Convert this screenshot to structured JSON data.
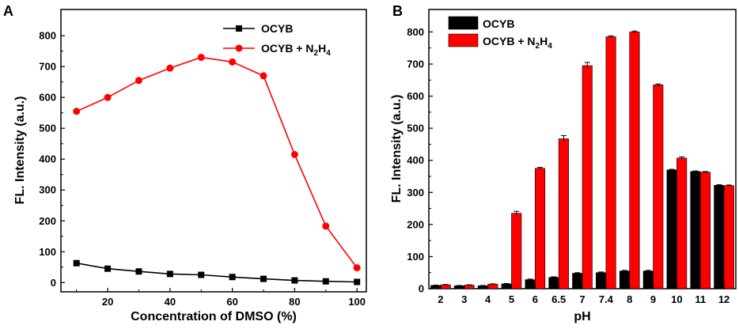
{
  "chart_data": [
    {
      "panel_label": "A",
      "type": "line",
      "xlabel": "Concentration of DMSO (%)",
      "ylabel": "FL. Intensity (a.u.)",
      "xlim": [
        5,
        103
      ],
      "ylim": [
        -30,
        885
      ],
      "x_ticks": [
        "20",
        "40",
        "60",
        "80",
        "100"
      ],
      "y_ticks": [
        "0",
        "100",
        "200",
        "300",
        "400",
        "500",
        "600",
        "700",
        "800"
      ],
      "x": [
        10,
        20,
        30,
        40,
        50,
        60,
        70,
        80,
        90,
        100
      ],
      "series": [
        {
          "name": "OCYB",
          "legend_main": "OCYB",
          "legend_sub": "",
          "legend_tail": "",
          "color": "#000000",
          "marker": "square",
          "values": [
            63,
            45,
            36,
            28,
            25,
            18,
            12,
            7,
            4,
            2
          ]
        },
        {
          "name": "OCYB + N2H4",
          "legend_main": "OCYB + N",
          "legend_sub": "2",
          "legend_tail": "H",
          "legend_sub2": "4",
          "color": "#ff0000",
          "marker": "circle",
          "values": [
            555,
            600,
            655,
            695,
            730,
            715,
            670,
            415,
            183,
            48
          ]
        }
      ]
    },
    {
      "panel_label": "B",
      "type": "bar",
      "xlabel": "pH",
      "ylabel": "FL. Intensity (a.u.)",
      "ylim": [
        0,
        870
      ],
      "categories": [
        "2",
        "3",
        "4",
        "5",
        "6",
        "6.5",
        "7",
        "7.4",
        "8",
        "9",
        "10",
        "11",
        "12"
      ],
      "y_ticks": [
        "0",
        "100",
        "200",
        "300",
        "400",
        "500",
        "600",
        "700",
        "800"
      ],
      "series": [
        {
          "name": "OCYB",
          "legend_main": "OCYB",
          "legend_sub": "",
          "legend_tail": "",
          "color": "#000000",
          "values": [
            10,
            9,
            9,
            15,
            28,
            35,
            48,
            50,
            55,
            55,
            370,
            365,
            322
          ],
          "errors": [
            1,
            1,
            1,
            1,
            2,
            2,
            2,
            2,
            2,
            2,
            2,
            2,
            2
          ]
        },
        {
          "name": "OCYB + N2H4",
          "legend_main": "OCYB + N",
          "legend_sub": "2",
          "legend_tail": "H",
          "legend_sub2": "4",
          "color": "#ff0000",
          "values": [
            12,
            11,
            14,
            235,
            375,
            467,
            695,
            785,
            800,
            635,
            407,
            363,
            321
          ],
          "errors": [
            1,
            1,
            1,
            6,
            3,
            10,
            10,
            3,
            3,
            3,
            4,
            2,
            2
          ]
        }
      ]
    }
  ]
}
